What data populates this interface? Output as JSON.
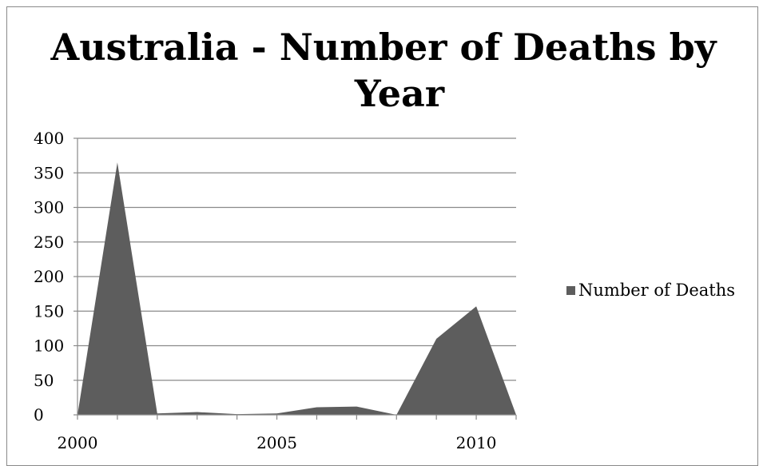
{
  "chart_data": {
    "type": "area",
    "title_line1": "Australia - Number of Deaths by",
    "title_line2": "Year",
    "x": [
      2000,
      2001,
      2002,
      2003,
      2004,
      2005,
      2006,
      2007,
      2008,
      2009,
      2010,
      2011
    ],
    "x_tick_labels": [
      "2000",
      "2005",
      "2010"
    ],
    "x_tick_label_values": [
      2000,
      2005,
      2010
    ],
    "ylim": [
      0,
      400
    ],
    "y_ticks": [
      0,
      50,
      100,
      150,
      200,
      250,
      300,
      350,
      400
    ],
    "grid": true,
    "legend_position": "right",
    "series": [
      {
        "name": "Number of Deaths",
        "color": "#5d5d5d",
        "values": [
          0,
          365,
          2,
          4,
          1,
          2,
          11,
          12,
          0,
          110,
          157,
          0
        ]
      }
    ]
  }
}
